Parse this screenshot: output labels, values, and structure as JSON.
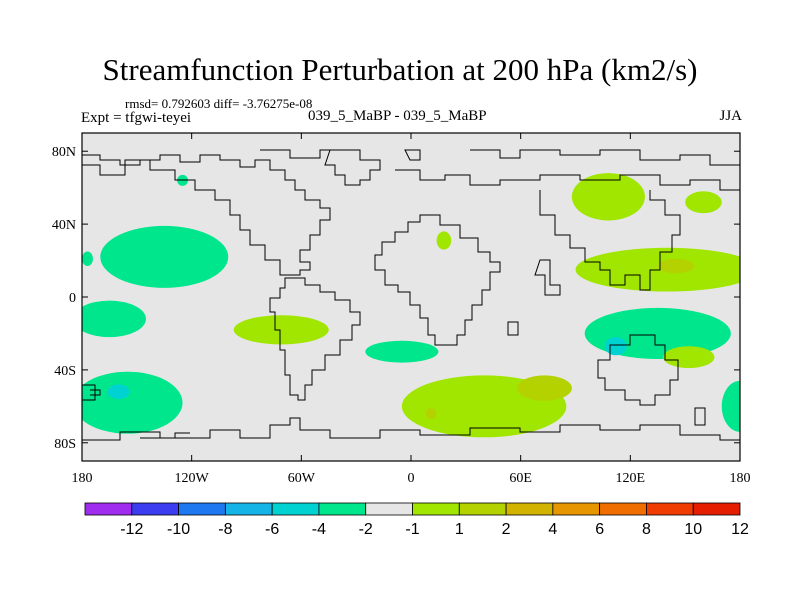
{
  "chart_data": {
    "type": "heatmap",
    "title": "Streamfunction Perturbation at 200 hPa (km2/s)",
    "stats_line": "rmsd= 0.792603 diff= -3.76275e-08",
    "experiment_label": "Expt = tfgwi-teyei",
    "case_label": "039_5_MaBP - 039_5_MaBP",
    "season_label": "JJA",
    "xlim": [
      180,
      540
    ],
    "ylim": [
      -90,
      90
    ],
    "x_ticks": [
      {
        "value": 180,
        "label": "180"
      },
      {
        "value": 240,
        "label": "120W"
      },
      {
        "value": 300,
        "label": "60W"
      },
      {
        "value": 360,
        "label": "0"
      },
      {
        "value": 420,
        "label": "60E"
      },
      {
        "value": 480,
        "label": "120E"
      },
      {
        "value": 540,
        "label": "180"
      }
    ],
    "y_ticks": [
      {
        "value": 80,
        "label": "80N"
      },
      {
        "value": 40,
        "label": "40N"
      },
      {
        "value": 0,
        "label": "0"
      },
      {
        "value": -40,
        "label": "40S"
      },
      {
        "value": -80,
        "label": "80S"
      }
    ],
    "colorbar": {
      "colors": [
        "#a02cf0",
        "#3c3cf0",
        "#1e78f0",
        "#14b4e6",
        "#00d2d2",
        "#00e68c",
        "#e6e6e6",
        "#a0e600",
        "#b4d200",
        "#d2b400",
        "#e69600",
        "#f06e00",
        "#f03c00",
        "#e61e00"
      ],
      "labels": [
        "-12",
        "-10",
        "-8",
        "-6",
        "-4",
        "-2",
        "-1",
        "1",
        "2",
        "4",
        "6",
        "8",
        "10",
        "12"
      ]
    },
    "blobs": [
      {
        "lon": 183,
        "lat": 21,
        "rlon": 3,
        "rlat": 4,
        "value": -2
      },
      {
        "lon": 225,
        "lat": 22,
        "rlon": 35,
        "rlat": 17,
        "value": -2
      },
      {
        "lon": 195,
        "lat": -12,
        "rlon": 20,
        "rlat": 10,
        "value": -2
      },
      {
        "lon": 205,
        "lat": -58,
        "rlon": 30,
        "rlat": 17,
        "value": -2
      },
      {
        "lon": 200,
        "lat": -52,
        "rlon": 6,
        "rlat": 4,
        "value": -4
      },
      {
        "lon": 289,
        "lat": -18,
        "rlon": 26,
        "rlat": 8,
        "value": 2
      },
      {
        "lon": 235,
        "lat": 64,
        "rlon": 3,
        "rlat": 3,
        "value": -2
      },
      {
        "lon": 378,
        "lat": 31,
        "rlon": 4,
        "rlat": 5,
        "value": 2
      },
      {
        "lon": 355,
        "lat": -30,
        "rlon": 20,
        "rlat": 6,
        "value": -2
      },
      {
        "lon": 400,
        "lat": -60,
        "rlon": 45,
        "rlat": 17,
        "value": 2
      },
      {
        "lon": 433,
        "lat": -50,
        "rlon": 15,
        "rlat": 7,
        "value": 4
      },
      {
        "lon": 371,
        "lat": -64,
        "rlon": 3,
        "rlat": 3,
        "value": 4
      },
      {
        "lon": 495,
        "lat": -20,
        "rlon": 40,
        "rlat": 14,
        "value": -2
      },
      {
        "lon": 472,
        "lat": -27,
        "rlon": 6,
        "rlat": 5,
        "value": -4
      },
      {
        "lon": 512,
        "lat": -33,
        "rlon": 14,
        "rlat": 6,
        "value": 2
      },
      {
        "lon": 540,
        "lat": -60,
        "rlon": 10,
        "rlat": 14,
        "value": -2
      },
      {
        "lon": 500,
        "lat": 15,
        "rlon": 50,
        "rlat": 12,
        "value": 2
      },
      {
        "lon": 505,
        "lat": 17,
        "rlon": 10,
        "rlat": 4,
        "value": 4
      },
      {
        "lon": 468,
        "lat": 55,
        "rlon": 20,
        "rlat": 13,
        "value": 2
      },
      {
        "lon": 520,
        "lat": 52,
        "rlon": 10,
        "rlat": 6,
        "value": 2
      }
    ]
  }
}
